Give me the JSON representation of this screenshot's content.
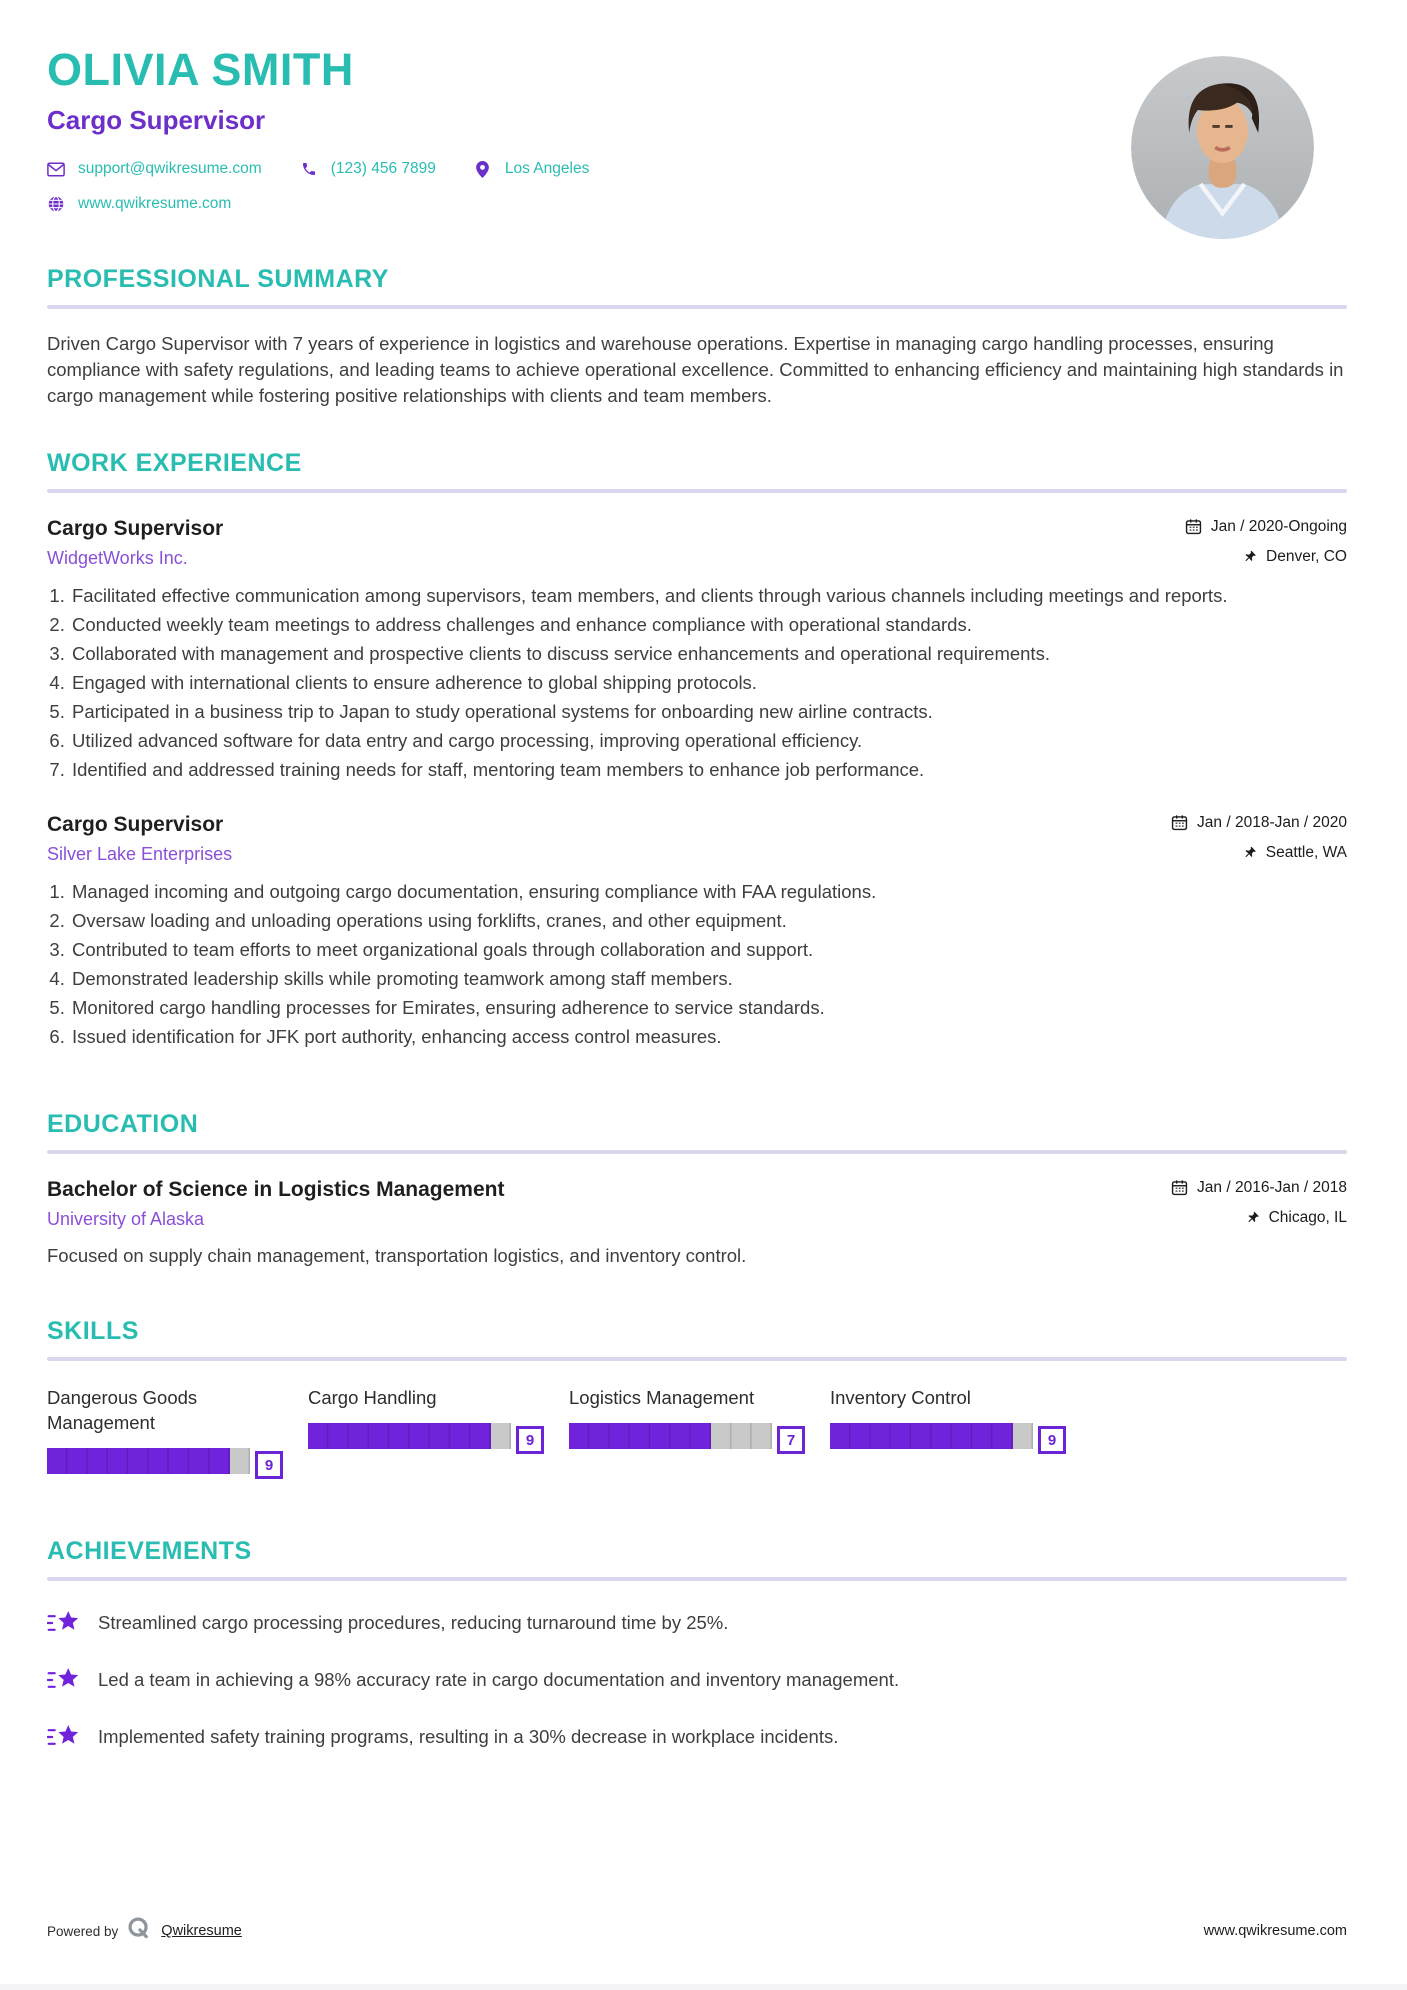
{
  "header": {
    "name": "OLIVIA SMITH",
    "title": "Cargo Supervisor",
    "contact": {
      "email": "support@qwikresume.com",
      "phone": "(123) 456 7899",
      "location": "Los Angeles",
      "website": "www.qwikresume.com"
    }
  },
  "sections": {
    "summary": {
      "heading": "PROFESSIONAL SUMMARY",
      "text": "Driven Cargo Supervisor with 7 years of experience in logistics and warehouse operations. Expertise in managing cargo handling processes, ensuring compliance with safety regulations, and leading teams to achieve operational excellence. Committed to enhancing efficiency and maintaining high standards in cargo management while fostering positive relationships with clients and team members."
    },
    "experience": {
      "heading": "WORK EXPERIENCE",
      "jobs": [
        {
          "title": "Cargo Supervisor",
          "company": "WidgetWorks Inc.",
          "dates": "Jan / 2020-Ongoing",
          "location": "Denver, CO",
          "bullets": [
            "Facilitated effective communication among supervisors, team members, and clients through various channels including meetings and reports.",
            "Conducted weekly team meetings to address challenges and enhance compliance with operational standards.",
            "Collaborated with management and prospective clients to discuss service enhancements and operational requirements.",
            "Engaged with international clients to ensure adherence to global shipping protocols.",
            "Participated in a business trip to Japan to study operational systems for onboarding new airline contracts.",
            "Utilized advanced software for data entry and cargo processing, improving operational efficiency.",
            "Identified and addressed training needs for staff, mentoring team members to enhance job performance."
          ]
        },
        {
          "title": "Cargo Supervisor",
          "company": "Silver Lake Enterprises",
          "dates": "Jan / 2018-Jan / 2020",
          "location": "Seattle, WA",
          "bullets": [
            "Managed incoming and outgoing cargo documentation, ensuring compliance with FAA regulations.",
            "Oversaw loading and unloading operations using forklifts, cranes, and other equipment.",
            "Contributed to team efforts to meet organizational goals through collaboration and support.",
            "Demonstrated leadership skills while promoting teamwork among staff members.",
            "Monitored cargo handling processes for Emirates, ensuring adherence to service standards.",
            "Issued identification for JFK port authority, enhancing access control measures."
          ]
        }
      ]
    },
    "education": {
      "heading": "EDUCATION",
      "degree": "Bachelor of Science in Logistics Management",
      "school": "University of Alaska",
      "dates": "Jan / 2016-Jan / 2018",
      "location": "Chicago, IL",
      "description": "Focused on supply chain management, transportation logistics, and inventory control."
    },
    "skills": {
      "heading": "SKILLS",
      "items": [
        {
          "name": "Dangerous Goods Management",
          "level": 9,
          "max": 10
        },
        {
          "name": "Cargo Handling",
          "level": 9,
          "max": 10
        },
        {
          "name": "Logistics Management",
          "level": 7,
          "max": 10
        },
        {
          "name": "Inventory Control",
          "level": 9,
          "max": 10
        }
      ]
    },
    "achievements": {
      "heading": "ACHIEVEMENTS",
      "items": [
        "Streamlined cargo processing procedures, reducing turnaround time by 25%.",
        "Led a team in achieving a 98% accuracy rate in cargo documentation and inventory management.",
        "Implemented safety training programs, resulting in a 30% decrease in workplace incidents."
      ]
    }
  },
  "footer": {
    "powered_by": "Powered by",
    "brand": "Qwikresume",
    "website": "www.qwikresume.com"
  },
  "icons": {
    "email-icon": "envelope-outline",
    "phone-icon": "phone-handset",
    "location-pin-icon": "map-pin",
    "globe-icon": "globe",
    "calendar-icon": "calendar-outline",
    "pushpin-icon": "thumbtack",
    "achievement-star-icon": "shooting-star",
    "brand-q-icon": "letter-q-ring"
  },
  "colors": {
    "teal": "#29bdb2",
    "purple_dark": "#6d2fc9",
    "purple_link": "#8a4fd8",
    "bar_fill": "#7122db",
    "badge_border": "#6a24d6",
    "rule_lavender": "#dbd5ee",
    "bar_track_gray": "#c9c9c9",
    "body_text": "#3e3e3e"
  }
}
